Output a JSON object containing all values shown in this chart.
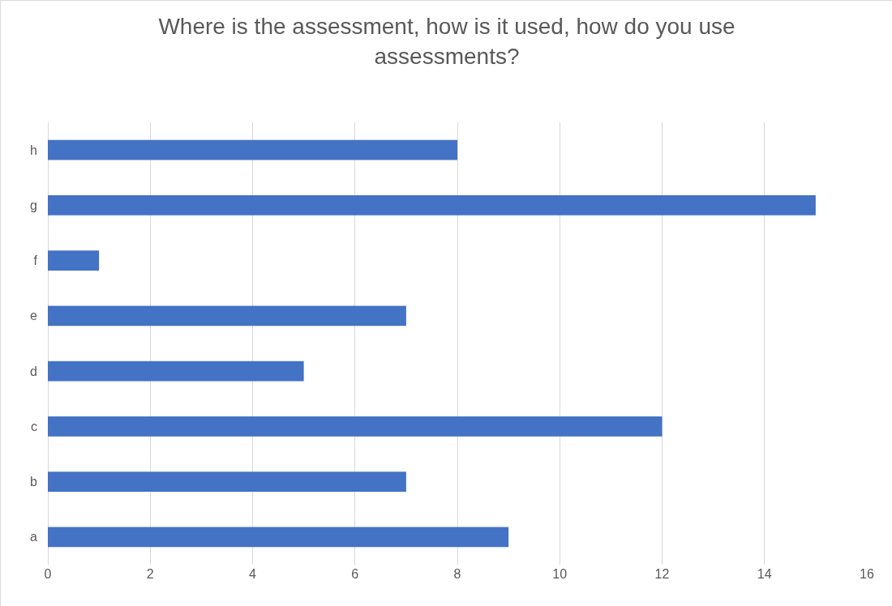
{
  "chart_data": {
    "type": "bar",
    "orientation": "horizontal",
    "title": "Where is the assessment, how is it used, how do you use assessments?",
    "categories": [
      "h",
      "g",
      "f",
      "e",
      "d",
      "c",
      "b",
      "a"
    ],
    "values": [
      8,
      15,
      1,
      7,
      5,
      12,
      7,
      9
    ],
    "color": "#4472c4",
    "xlim": [
      0,
      16
    ],
    "xticks": [
      0,
      2,
      4,
      6,
      8,
      10,
      12,
      14,
      16
    ],
    "grid": "x"
  }
}
